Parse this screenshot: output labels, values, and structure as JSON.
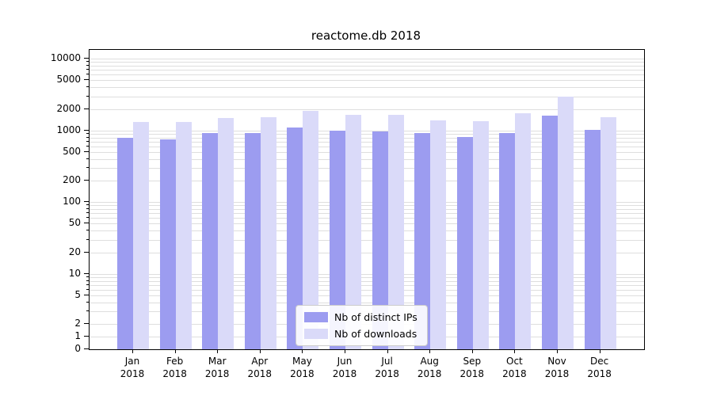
{
  "chart_data": {
    "type": "bar",
    "title": "reactome.db 2018",
    "yscale": "symlog",
    "ylim": [
      0,
      10000
    ],
    "grid": "horizontal-minor",
    "legend_position": "lower center",
    "categories": [
      "Jan",
      "Feb",
      "Mar",
      "Apr",
      "May",
      "Jun",
      "Jul",
      "Aug",
      "Sep",
      "Oct",
      "Nov",
      "Dec"
    ],
    "category_year": "2018",
    "y_ticks": [
      0,
      1,
      2,
      5,
      10,
      20,
      50,
      100,
      200,
      500,
      1000,
      2000,
      5000,
      10000
    ],
    "series": [
      {
        "name": "Nb of distinct IPs",
        "color": "#9c9cf0",
        "values": [
          800,
          760,
          930,
          930,
          1100,
          1000,
          960,
          910,
          820,
          930,
          1600,
          1020
        ]
      },
      {
        "name": "Nb of downloads",
        "color": "#dadaf9",
        "values": [
          1300,
          1300,
          1480,
          1520,
          1900,
          1650,
          1650,
          1400,
          1350,
          1750,
          3000,
          1550
        ]
      }
    ]
  }
}
